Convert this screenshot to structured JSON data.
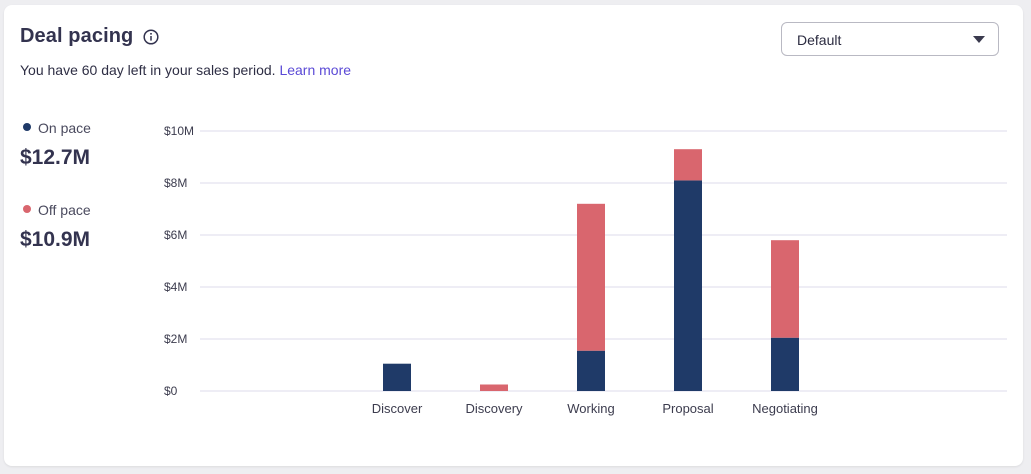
{
  "header": {
    "title": "Deal pacing",
    "subtitle_text": "You have 60 day left in your sales period.",
    "learn_more_label": "Learn more"
  },
  "dropdown": {
    "selected": "Default"
  },
  "legend": [
    {
      "label": "On pace",
      "value": "$12.7M",
      "color": "#1f3a68"
    },
    {
      "label": "Off pace",
      "value": "$10.9M",
      "color": "#d9666e"
    }
  ],
  "icons": {
    "info": "info-icon",
    "dropdown": "caret-down-icon"
  },
  "chart_data": {
    "type": "bar",
    "stacked": true,
    "categories": [
      "Discover",
      "Discovery",
      "Working",
      "Proposal",
      "Negotiating"
    ],
    "series": [
      {
        "name": "On pace",
        "color": "#1f3a68",
        "values": [
          1.05,
          0,
          1.55,
          8.1,
          2.05
        ]
      },
      {
        "name": "Off pace",
        "color": "#d9666e",
        "values": [
          0,
          0.25,
          5.65,
          1.2,
          3.75
        ]
      }
    ],
    "yticks": [
      "$0",
      "$2M",
      "$4M",
      "$6M",
      "$8M",
      "$10M"
    ],
    "ylim": [
      0,
      10
    ],
    "grid": true
  }
}
